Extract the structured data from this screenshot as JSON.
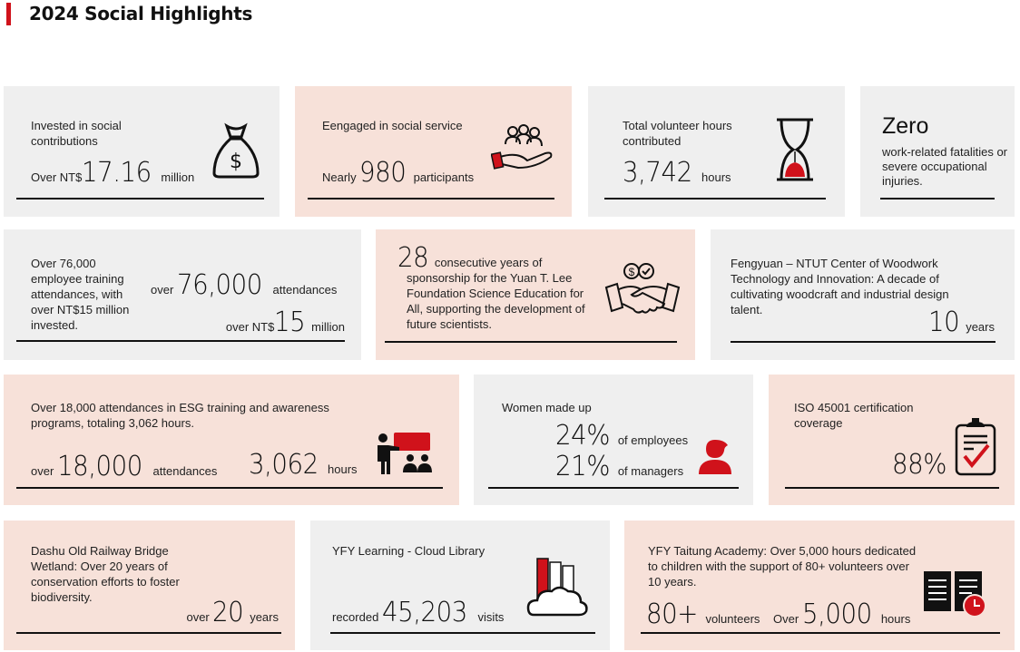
{
  "title": "2024 Social Highlights",
  "colors": {
    "accent": "#d0121b",
    "gray_card": "#efefef",
    "peach_card": "#f7e1d9"
  },
  "cards": {
    "social_contrib": {
      "text": "Invested in social contributions",
      "pre": "Over NT$",
      "value": "17.16",
      "unit": "million",
      "icon": "money-bag-icon"
    },
    "social_service": {
      "text": "Eengaged in social service",
      "pre": "Nearly",
      "value": "980",
      "unit": "participants",
      "icon": "helping-hand-people-icon"
    },
    "volunteer_hours": {
      "text": "Total volunteer hours contributed",
      "value": "3,742",
      "unit": "hours",
      "icon": "hourglass-icon"
    },
    "zero": {
      "value": "Zero",
      "text": "work-related fatalities or severe occupational injuries."
    },
    "training": {
      "text": "Over 76,000 employee training attendances, with over NT$15 million invested.",
      "pre1": "over",
      "value1": "76,000",
      "unit1": "attendances",
      "pre2": "over NT$",
      "value2": "15",
      "unit2": "million"
    },
    "sponsorship": {
      "value": "28",
      "text1": "consecutive years of",
      "text2": "sponsorship for the Yuan T. Lee Foundation Science Education for All, supporting the development of future scientists.",
      "icon": "handshake-money-icon"
    },
    "woodwork": {
      "text": "Fengyuan – NTUT Center of Woodwork Technology and Innovation: A decade of cultivating woodcraft and industrial design talent.",
      "value": "10",
      "unit": "years"
    },
    "esg": {
      "text": "Over 18,000 attendances in ESG training and awareness programs, totaling 3,062 hours.",
      "pre1": "over",
      "value1": "18,000",
      "unit1": "attendances",
      "value2": "3,062",
      "unit2": "hours",
      "icon": "presentation-icon"
    },
    "women": {
      "text": "Women made up",
      "value1": "24%",
      "unit1": "of employees",
      "value2": "21%",
      "unit2": "of managers",
      "icon": "woman-icon"
    },
    "iso": {
      "text": "ISO 45001 certification coverage",
      "value": "88%",
      "icon": "clipboard-check-icon"
    },
    "dashu": {
      "text": "Dashu Old Railway Bridge Wetland: Over 20 years of conservation efforts to foster biodiversity.",
      "pre": "over",
      "value": "20",
      "unit": "years"
    },
    "library": {
      "text": "YFY Learning - Cloud Library",
      "pre": "recorded",
      "value": "45,203",
      "unit": "visits",
      "icon": "cloud-books-icon"
    },
    "taitung": {
      "text": "YFY Taitung Academy: Over 5,000 hours dedicated to children with the support of 80+ volunteers over 10 years.",
      "value1": "80+",
      "unit1": "volunteers",
      "pre2": "Over",
      "value2": "5,000",
      "unit2": "hours",
      "icon": "book-clock-icon"
    }
  }
}
